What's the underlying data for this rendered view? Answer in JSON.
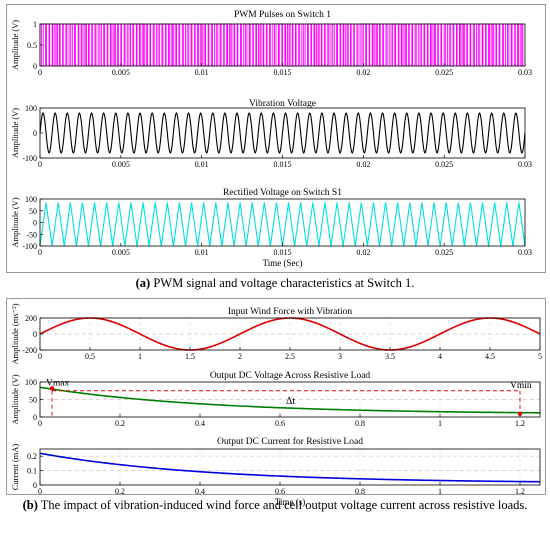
{
  "captions": {
    "a_label": "(a)",
    "a_text": "PWM signal and voltage characteristics at Switch 1.",
    "b_label": "(b)",
    "b_text": "The impact of vibration-induced wind force and cell output voltage current across resistive loads."
  },
  "colors": {
    "pwm": "#ff00ff",
    "vibration": "#000000",
    "rectified": "#00e0e0",
    "wind": "#e00000",
    "dc_voltage": "#008000",
    "dc_current": "#0000e0",
    "annotation": "#e00000"
  },
  "chart_data": [
    {
      "type": "line",
      "title": "PWM Pulses on Switch 1",
      "ylabel": "Amplitude (V)",
      "xlabel": "",
      "xlim": [
        0,
        0.03
      ],
      "ylim": [
        0,
        1
      ],
      "xticks": [
        "0",
        "0.005",
        "0.01",
        "0.015",
        "0.02",
        "0.025",
        "0.03"
      ],
      "yticks": [
        "0",
        "0.5",
        "1"
      ],
      "series": [
        {
          "shape": "square",
          "amplitude_low": 0,
          "amplitude_high": 1,
          "pulse_count": 150
        }
      ],
      "grid": false
    },
    {
      "type": "line",
      "title": "Vibration Voltage",
      "ylabel": "Amplitude (V)",
      "xlabel": "",
      "xlim": [
        0,
        0.03
      ],
      "ylim": [
        -100,
        100
      ],
      "xticks": [
        "0",
        "0.005",
        "0.01",
        "0.015",
        "0.02",
        "0.025",
        "0.03"
      ],
      "yticks": [
        "-100",
        "0",
        "100"
      ],
      "series": [
        {
          "shape": "sine",
          "amplitude": 80,
          "cycles": 40
        }
      ],
      "grid": false
    },
    {
      "type": "line",
      "title": "Rectified Voltage on Switch S1",
      "ylabel": "Amplitude (V)",
      "xlabel": "Time (Sec)",
      "xlim": [
        0,
        0.03
      ],
      "ylim": [
        -100,
        100
      ],
      "xticks": [
        "0",
        "0.005",
        "0.01",
        "0.015",
        "0.02",
        "0.025",
        "0.03"
      ],
      "yticks": [
        "-100",
        "-50",
        "0",
        "50",
        "100"
      ],
      "series": [
        {
          "shape": "triangle",
          "max": 85,
          "min": -100,
          "cycles": 40
        }
      ],
      "grid": false
    },
    {
      "type": "line",
      "title": "Input Wind Force with Vibration",
      "ylabel": "Amplitude (ms⁻²)",
      "xlabel": "",
      "xlim": [
        0,
        5
      ],
      "ylim": [
        -200,
        200
      ],
      "xticks": [
        "0",
        "0.5",
        "1",
        "1.5",
        "2",
        "2.5",
        "3",
        "3.5",
        "4",
        "4.5",
        "5"
      ],
      "yticks": [
        "-200",
        "0",
        "200"
      ],
      "series": [
        {
          "shape": "sine",
          "amplitude": 200,
          "period": 2,
          "phase_peak_at": 0.5
        }
      ],
      "grid": true
    },
    {
      "type": "line",
      "title": "Output DC Voltage Across Resistive Load",
      "ylabel": "Amplitude (V)",
      "xlabel": "",
      "xlim": [
        0,
        1.25
      ],
      "ylim": [
        0,
        100
      ],
      "xticks": [
        "0",
        "0.2",
        "0.4",
        "0.6",
        "0.8",
        "1",
        "1.2"
      ],
      "yticks": [
        "0",
        "50",
        "100"
      ],
      "series": [
        {
          "shape": "exp_decay",
          "start": 85,
          "end": 8,
          "tau": 0.42
        }
      ],
      "annotations": {
        "vmax_label": "Vmax",
        "vmin_label": "Vmin",
        "delta_label": "Δt",
        "vmax_point": {
          "x": 0.03,
          "y": 82
        },
        "vmin_point": {
          "x": 1.2,
          "y": 9
        },
        "dashed_level": 75
      },
      "grid": true
    },
    {
      "type": "line",
      "title": "Output DC Current for Resistive Load",
      "ylabel": "Current (mA)",
      "xlabel": "Time (s)",
      "xlim": [
        0,
        1.25
      ],
      "ylim": [
        0,
        0.25
      ],
      "xticks": [
        "0",
        "0.2",
        "0.4",
        "0.6",
        "0.8",
        "1",
        "1.2"
      ],
      "yticks": [
        "0",
        "0.1",
        "0.2"
      ],
      "series": [
        {
          "shape": "exp_decay",
          "start": 0.22,
          "end": 0.012,
          "tau": 0.42
        }
      ],
      "grid": true
    }
  ]
}
